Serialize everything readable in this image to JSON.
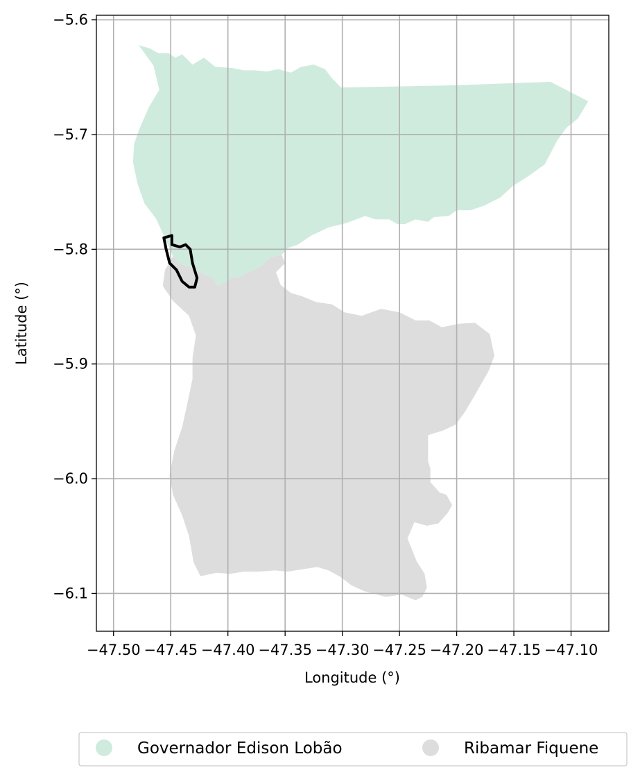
{
  "chart_data": {
    "type": "map",
    "xlabel": "Longitude (°)",
    "ylabel": "Latitude (°)",
    "xlim": [
      -47.515,
      -47.067
    ],
    "ylim": [
      -6.133,
      -5.596
    ],
    "x_ticks": [
      -47.5,
      -47.45,
      -47.4,
      -47.35,
      -47.3,
      -47.25,
      -47.2,
      -47.15,
      -47.1
    ],
    "x_tick_labels": [
      "−47.50",
      "−47.45",
      "−47.40",
      "−47.35",
      "−47.30",
      "−47.25",
      "−47.20",
      "−47.15",
      "−47.10"
    ],
    "y_ticks": [
      -5.6,
      -5.7,
      -5.8,
      -5.9,
      -6.0,
      -6.1
    ],
    "y_tick_labels": [
      "−5.6",
      "−5.7",
      "−5.8",
      "−5.9",
      "−6.0",
      "−6.1"
    ],
    "grid": true,
    "legend_position": "bottom-center",
    "regions": [
      {
        "name": "Governador Edison Lobão",
        "color": "#cfebdd",
        "outline": [
          [
            -47.478,
            -5.622
          ],
          [
            -47.468,
            -5.625
          ],
          [
            -47.461,
            -5.629
          ],
          [
            -47.452,
            -5.629
          ],
          [
            -47.446,
            -5.633
          ],
          [
            -47.44,
            -5.63
          ],
          [
            -47.431,
            -5.639
          ],
          [
            -47.421,
            -5.633
          ],
          [
            -47.411,
            -5.641
          ],
          [
            -47.396,
            -5.642
          ],
          [
            -47.386,
            -5.644
          ],
          [
            -47.376,
            -5.644
          ],
          [
            -47.366,
            -5.645
          ],
          [
            -47.356,
            -5.643
          ],
          [
            -47.345,
            -5.646
          ],
          [
            -47.336,
            -5.641
          ],
          [
            -47.325,
            -5.639
          ],
          [
            -47.315,
            -5.643
          ],
          [
            -47.309,
            -5.651
          ],
          [
            -47.301,
            -5.659
          ],
          [
            -47.2,
            -5.657
          ],
          [
            -47.118,
            -5.654
          ],
          [
            -47.085,
            -5.671
          ],
          [
            -47.094,
            -5.686
          ],
          [
            -47.104,
            -5.694
          ],
          [
            -47.112,
            -5.705
          ],
          [
            -47.123,
            -5.726
          ],
          [
            -47.137,
            -5.736
          ],
          [
            -47.151,
            -5.745
          ],
          [
            -47.162,
            -5.755
          ],
          [
            -47.176,
            -5.762
          ],
          [
            -47.188,
            -5.766
          ],
          [
            -47.2,
            -5.766
          ],
          [
            -47.207,
            -5.771
          ],
          [
            -47.22,
            -5.772
          ],
          [
            -47.225,
            -5.776
          ],
          [
            -47.236,
            -5.774
          ],
          [
            -47.245,
            -5.778
          ],
          [
            -47.252,
            -5.778
          ],
          [
            -47.259,
            -5.774
          ],
          [
            -47.271,
            -5.774
          ],
          [
            -47.28,
            -5.771
          ],
          [
            -47.296,
            -5.777
          ],
          [
            -47.312,
            -5.781
          ],
          [
            -47.327,
            -5.788
          ],
          [
            -47.339,
            -5.796
          ],
          [
            -47.348,
            -5.799
          ],
          [
            -47.353,
            -5.805
          ],
          [
            -47.359,
            -5.806
          ],
          [
            -47.364,
            -5.808
          ],
          [
            -47.371,
            -5.815
          ],
          [
            -47.38,
            -5.819
          ],
          [
            -47.389,
            -5.824
          ],
          [
            -47.397,
            -5.825
          ],
          [
            -47.402,
            -5.829
          ],
          [
            -47.409,
            -5.832
          ],
          [
            -47.413,
            -5.825
          ],
          [
            -47.422,
            -5.821
          ],
          [
            -47.431,
            -5.816
          ],
          [
            -47.441,
            -5.813
          ],
          [
            -47.448,
            -5.806
          ],
          [
            -47.457,
            -5.786
          ],
          [
            -47.463,
            -5.773
          ],
          [
            -47.473,
            -5.76
          ],
          [
            -47.479,
            -5.743
          ],
          [
            -47.483,
            -5.724
          ],
          [
            -47.482,
            -5.708
          ],
          [
            -47.477,
            -5.694
          ],
          [
            -47.469,
            -5.676
          ],
          [
            -47.46,
            -5.661
          ],
          [
            -47.465,
            -5.64
          ],
          [
            -47.478,
            -5.622
          ]
        ]
      },
      {
        "name": "Ribamar Fiquene",
        "color": "#dddddd",
        "outline": [
          [
            -47.448,
            -5.806
          ],
          [
            -47.441,
            -5.813
          ],
          [
            -47.431,
            -5.816
          ],
          [
            -47.422,
            -5.821
          ],
          [
            -47.413,
            -5.825
          ],
          [
            -47.409,
            -5.832
          ],
          [
            -47.402,
            -5.829
          ],
          [
            -47.397,
            -5.825
          ],
          [
            -47.389,
            -5.824
          ],
          [
            -47.38,
            -5.819
          ],
          [
            -47.371,
            -5.815
          ],
          [
            -47.364,
            -5.808
          ],
          [
            -47.359,
            -5.806
          ],
          [
            -47.353,
            -5.805
          ],
          [
            -47.35,
            -5.812
          ],
          [
            -47.358,
            -5.82
          ],
          [
            -47.354,
            -5.831
          ],
          [
            -47.345,
            -5.838
          ],
          [
            -47.335,
            -5.841
          ],
          [
            -47.323,
            -5.846
          ],
          [
            -47.309,
            -5.848
          ],
          [
            -47.298,
            -5.855
          ],
          [
            -47.283,
            -5.858
          ],
          [
            -47.266,
            -5.852
          ],
          [
            -47.25,
            -5.855
          ],
          [
            -47.236,
            -5.862
          ],
          [
            -47.224,
            -5.862
          ],
          [
            -47.213,
            -5.868
          ],
          [
            -47.198,
            -5.865
          ],
          [
            -47.184,
            -5.864
          ],
          [
            -47.171,
            -5.874
          ],
          [
            -47.167,
            -5.893
          ],
          [
            -47.172,
            -5.906
          ],
          [
            -47.184,
            -5.927
          ],
          [
            -47.193,
            -5.942
          ],
          [
            -47.201,
            -5.953
          ],
          [
            -47.212,
            -5.958
          ],
          [
            -47.225,
            -5.962
          ],
          [
            -47.225,
            -5.985
          ],
          [
            -47.223,
            -5.991
          ],
          [
            -47.223,
            -6.003
          ],
          [
            -47.215,
            -6.012
          ],
          [
            -47.209,
            -6.014
          ],
          [
            -47.204,
            -6.023
          ],
          [
            -47.208,
            -6.03
          ],
          [
            -47.216,
            -6.039
          ],
          [
            -47.226,
            -6.041
          ],
          [
            -47.237,
            -6.038
          ],
          [
            -47.243,
            -6.052
          ],
          [
            -47.239,
            -6.062
          ],
          [
            -47.235,
            -6.072
          ],
          [
            -47.228,
            -6.083
          ],
          [
            -47.226,
            -6.095
          ],
          [
            -47.23,
            -6.103
          ],
          [
            -47.236,
            -6.106
          ],
          [
            -47.248,
            -6.101
          ],
          [
            -47.262,
            -6.103
          ],
          [
            -47.281,
            -6.098
          ],
          [
            -47.292,
            -6.093
          ],
          [
            -47.301,
            -6.086
          ],
          [
            -47.312,
            -6.08
          ],
          [
            -47.322,
            -6.077
          ],
          [
            -47.335,
            -6.079
          ],
          [
            -47.348,
            -6.081
          ],
          [
            -47.359,
            -6.08
          ],
          [
            -47.373,
            -6.081
          ],
          [
            -47.386,
            -6.081
          ],
          [
            -47.398,
            -6.083
          ],
          [
            -47.41,
            -6.082
          ],
          [
            -47.424,
            -6.085
          ],
          [
            -47.43,
            -6.073
          ],
          [
            -47.434,
            -6.05
          ],
          [
            -47.44,
            -6.032
          ],
          [
            -47.448,
            -6.014
          ],
          [
            -47.451,
            -5.997
          ],
          [
            -47.447,
            -5.976
          ],
          [
            -47.44,
            -5.955
          ],
          [
            -47.435,
            -5.932
          ],
          [
            -47.431,
            -5.913
          ],
          [
            -47.431,
            -5.895
          ],
          [
            -47.428,
            -5.875
          ],
          [
            -47.434,
            -5.858
          ],
          [
            -47.448,
            -5.845
          ],
          [
            -47.457,
            -5.832
          ],
          [
            -47.455,
            -5.818
          ],
          [
            -47.448,
            -5.806
          ]
        ]
      }
    ],
    "highlight": {
      "outline": [
        [
          -47.456,
          -5.79
        ],
        [
          -47.449,
          -5.788
        ],
        [
          -47.449,
          -5.796
        ],
        [
          -47.442,
          -5.798
        ],
        [
          -47.437,
          -5.796
        ],
        [
          -47.433,
          -5.8
        ],
        [
          -47.431,
          -5.812
        ],
        [
          -47.427,
          -5.825
        ],
        [
          -47.429,
          -5.833
        ],
        [
          -47.434,
          -5.833
        ],
        [
          -47.44,
          -5.828
        ],
        [
          -47.445,
          -5.818
        ],
        [
          -47.451,
          -5.812
        ],
        [
          -47.454,
          -5.8
        ],
        [
          -47.456,
          -5.79
        ]
      ],
      "color": "#000000"
    }
  },
  "legend": {
    "items": [
      {
        "label": "Governador Edison Lobão",
        "color": "#cfebdd"
      },
      {
        "label": "Ribamar Fiquene",
        "color": "#dddddd"
      }
    ]
  }
}
